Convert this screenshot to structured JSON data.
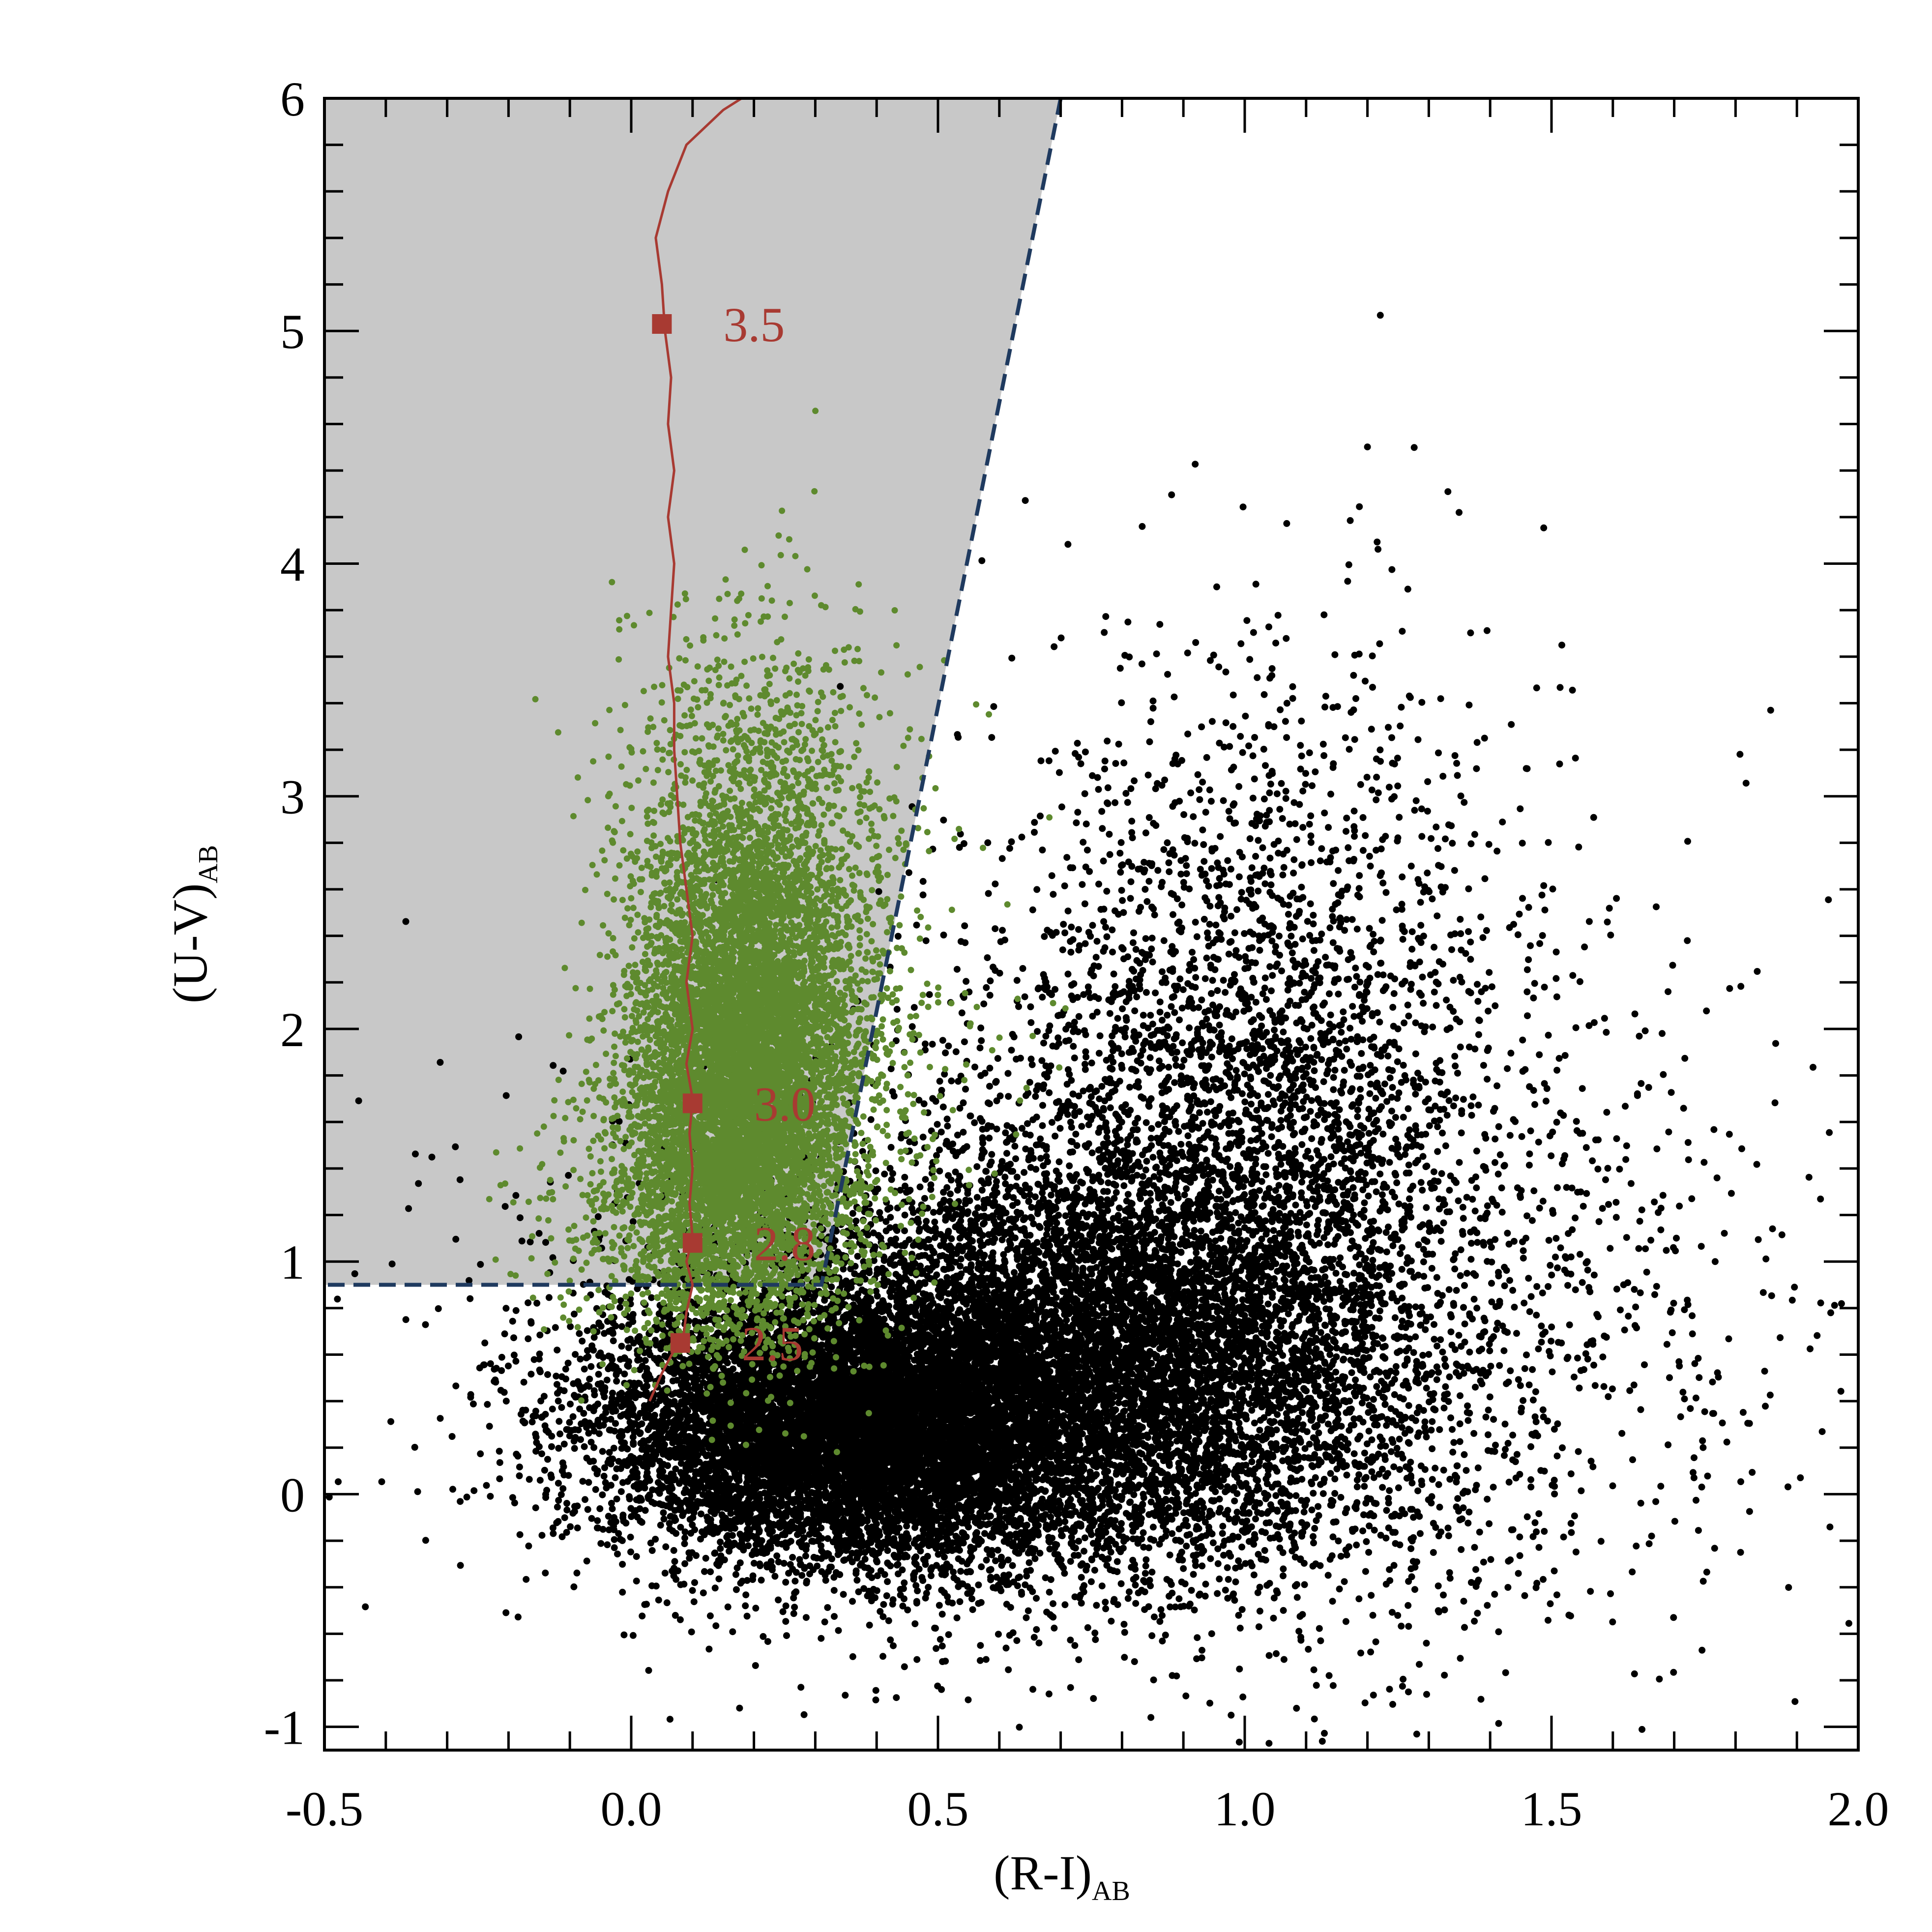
{
  "chart_data": {
    "type": "scatter",
    "xlabel": {
      "main": "(R-I)",
      "sub": "AB"
    },
    "ylabel": {
      "main": "(U-V)",
      "sub": "AB"
    },
    "xlim": [
      -0.5,
      2.0
    ],
    "ylim": [
      -1.1,
      6.0
    ],
    "x_ticks": [
      -0.5,
      0.0,
      0.5,
      1.0,
      1.5,
      2.0
    ],
    "x_tick_labels": [
      "-0.5",
      "0.0",
      "0.5",
      "1.0",
      "1.5",
      "2.0"
    ],
    "y_ticks": [
      -1,
      0,
      1,
      2,
      3,
      4,
      5,
      6
    ],
    "y_tick_labels": [
      "-1",
      "0",
      "1",
      "2",
      "3",
      "4",
      "5",
      "6"
    ],
    "x_minor_step": 0.1,
    "y_minor_step": 0.2,
    "grid": false,
    "legend": "none",
    "selection_region": {
      "fill": "#c8c8c8",
      "line_color": "#1f3a5f",
      "line_style": "dashed",
      "vertices": [
        [
          -0.5,
          6.0
        ],
        [
          0.7,
          6.0
        ],
        [
          0.31,
          0.9
        ],
        [
          -0.5,
          0.9
        ]
      ]
    },
    "series": [
      {
        "role": "all-sources",
        "color": "#000000",
        "marker": "dot",
        "clusters": [
          {
            "cx": 0.35,
            "cy": 0.3,
            "sx": 0.2,
            "sy": 0.28,
            "n": 9000
          },
          {
            "cx": 0.75,
            "cy": 0.55,
            "sx": 0.25,
            "sy": 0.45,
            "n": 6000
          },
          {
            "cx": 1.0,
            "cy": 1.6,
            "sx": 0.22,
            "sy": 0.9,
            "n": 3500
          },
          {
            "cx": 0.7,
            "cy": 0.6,
            "sx": 0.45,
            "sy": 0.6,
            "n": 2200
          },
          {
            "cx": 1.2,
            "cy": 0.6,
            "sx": 0.35,
            "sy": 0.8,
            "n": 450
          },
          {
            "cx": 1.6,
            "cy": 1.2,
            "sx": 0.25,
            "sy": 1.0,
            "n": 140
          }
        ]
      },
      {
        "role": "selected-sources",
        "color": "#5e8a2e",
        "marker": "dot",
        "clusters": [
          {
            "cx": 0.18,
            "cy": 1.75,
            "sx": 0.09,
            "sy": 0.45,
            "n": 6000
          },
          {
            "cx": 0.2,
            "cy": 2.5,
            "sx": 0.1,
            "sy": 0.5,
            "n": 2000
          },
          {
            "cx": 0.12,
            "cy": 1.2,
            "sx": 0.12,
            "sy": 0.3,
            "n": 1200
          },
          {
            "cx": 0.3,
            "cy": 2.0,
            "sx": 0.15,
            "sy": 0.6,
            "n": 400
          },
          {
            "cx": 0.22,
            "cy": 3.0,
            "sx": 0.12,
            "sy": 0.5,
            "n": 300
          }
        ]
      }
    ],
    "track": {
      "color": "#a83a32",
      "points": [
        [
          0.03,
          0.4
        ],
        [
          0.05,
          0.52
        ],
        [
          0.07,
          0.62
        ],
        [
          0.085,
          0.68
        ],
        [
          0.09,
          0.78
        ],
        [
          0.1,
          0.9
        ],
        [
          0.09,
          1.0
        ],
        [
          0.1,
          1.1
        ],
        [
          0.095,
          1.25
        ],
        [
          0.1,
          1.4
        ],
        [
          0.095,
          1.55
        ],
        [
          0.1,
          1.7
        ],
        [
          0.09,
          1.85
        ],
        [
          0.1,
          2.0
        ],
        [
          0.09,
          2.2
        ],
        [
          0.1,
          2.4
        ],
        [
          0.09,
          2.6
        ],
        [
          0.08,
          2.8
        ],
        [
          0.075,
          3.0
        ],
        [
          0.07,
          3.2
        ],
        [
          0.07,
          3.4
        ],
        [
          0.06,
          3.6
        ],
        [
          0.065,
          3.8
        ],
        [
          0.07,
          4.0
        ],
        [
          0.06,
          4.2
        ],
        [
          0.07,
          4.4
        ],
        [
          0.06,
          4.6
        ],
        [
          0.065,
          4.8
        ],
        [
          0.055,
          5.0
        ],
        [
          0.05,
          5.2
        ],
        [
          0.04,
          5.4
        ],
        [
          0.06,
          5.6
        ],
        [
          0.09,
          5.8
        ],
        [
          0.15,
          5.95
        ],
        [
          0.18,
          6.0
        ]
      ],
      "markers": [
        {
          "x": 0.08,
          "y": 0.65,
          "label": "2.5"
        },
        {
          "x": 0.1,
          "y": 1.08,
          "label": "2.8"
        },
        {
          "x": 0.1,
          "y": 1.68,
          "label": "3.0"
        },
        {
          "x": 0.05,
          "y": 5.03,
          "label": "3.5"
        }
      ]
    }
  }
}
